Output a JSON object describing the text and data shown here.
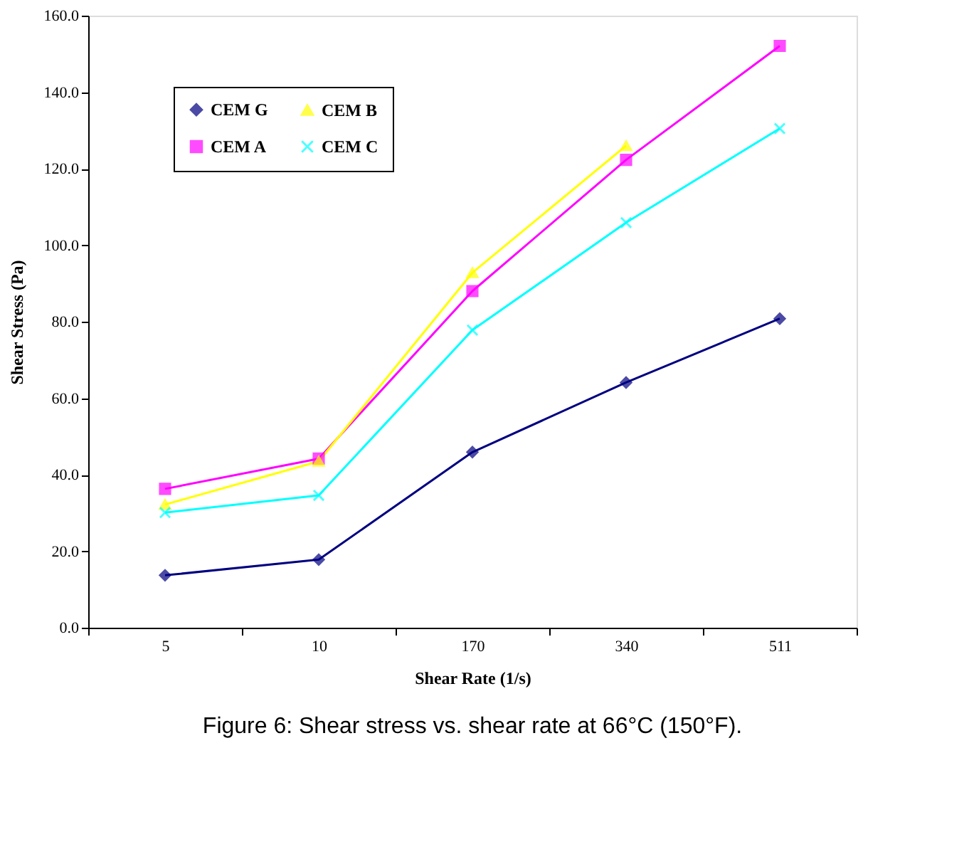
{
  "chart_data": {
    "type": "line",
    "title": "Figure 6: Shear stress vs. shear rate at 66°C (150°F).",
    "xlabel": "Shear Rate (1/s)",
    "ylabel": "Shear Stress (Pa)",
    "categories": [
      "5",
      "10",
      "170",
      "340",
      "511"
    ],
    "series": [
      {
        "name": "CEM G",
        "color": "#000080",
        "marker": "diamond",
        "values": [
          13.7,
          17.8,
          45.9,
          64.1,
          80.8
        ]
      },
      {
        "name": "CEM A",
        "color": "#ff00ff",
        "marker": "square",
        "values": [
          36.3,
          44.2,
          88.0,
          122.3,
          152.1
        ]
      },
      {
        "name": "CEM B",
        "color": "#ffff00",
        "marker": "triangle",
        "values": [
          32.2,
          43.5,
          92.8,
          126.0,
          null
        ]
      },
      {
        "name": "CEM C",
        "color": "#00ffff",
        "marker": "cross",
        "values": [
          30.1,
          34.6,
          77.8,
          105.9,
          130.5
        ]
      }
    ],
    "ylim": [
      0,
      160
    ],
    "yticks": [
      {
        "value": 0,
        "label": "0.0"
      },
      {
        "value": 20,
        "label": "20.0"
      },
      {
        "value": 40,
        "label": "40.0"
      },
      {
        "value": 60,
        "label": "60.0"
      },
      {
        "value": 80,
        "label": "80.0"
      },
      {
        "value": 100,
        "label": "100.0"
      },
      {
        "value": 120,
        "label": "120.0"
      },
      {
        "value": 140,
        "label": "140.0"
      },
      {
        "value": 160,
        "label": "160.0"
      }
    ],
    "grid": false,
    "legend": "top left",
    "line_style": "solid"
  }
}
